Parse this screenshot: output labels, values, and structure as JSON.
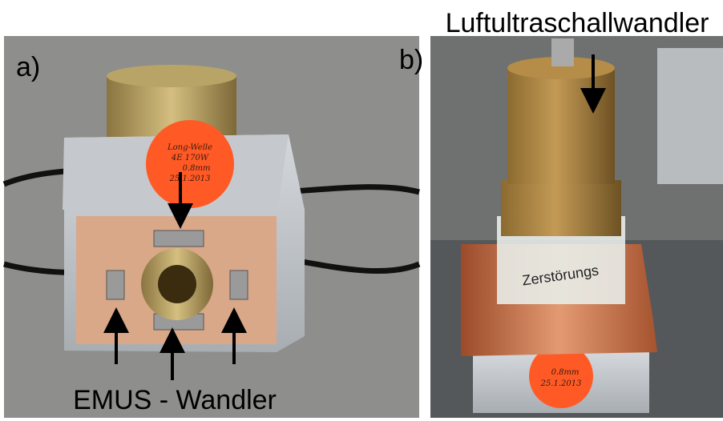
{
  "labels": {
    "panel_a": "a)",
    "panel_b": "b)",
    "top": "Luftultraschallwandler",
    "bottom": "EMUS - Wandler"
  },
  "sticker_a": [
    "Long-Welle",
    "4E 170W",
    "0.8mm",
    "25.1.2013"
  ],
  "sticker_b": [
    "0.8mm",
    "25.1.2013"
  ],
  "tape_text": "Zerstörungs"
}
